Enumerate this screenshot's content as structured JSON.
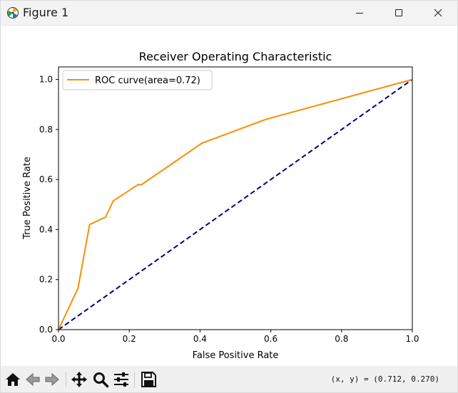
{
  "window": {
    "title": "Figure 1",
    "icons": {
      "app": "matplotlib-figure-icon",
      "minimize": "minimize-icon",
      "maximize": "maximize-icon",
      "close": "close-icon"
    }
  },
  "toolbar": {
    "buttons": [
      "home-icon",
      "back-arrow-icon",
      "forward-arrow-icon",
      "pan-icon",
      "zoom-icon",
      "configure-subplots-icon",
      "save-icon"
    ],
    "coords": "(x, y) = (0.712, 0.270)"
  },
  "chart_data": {
    "type": "line",
    "title": "Receiver Operating Characteristic",
    "xlabel": "False Positive Rate",
    "ylabel": "True Positive Rate",
    "xlim": [
      0.0,
      1.0
    ],
    "ylim": [
      0.0,
      1.05
    ],
    "xticks": [
      "0.0",
      "0.2",
      "0.4",
      "0.6",
      "0.8",
      "1.0"
    ],
    "yticks": [
      "0.0",
      "0.2",
      "0.4",
      "0.6",
      "0.8",
      "1.0"
    ],
    "grid": false,
    "legend_position": "upper-left",
    "series": [
      {
        "name": "ROC curve(area=0.72)",
        "color": "#ff8c00",
        "style": "solid",
        "x": [
          0.0,
          0.055,
          0.088,
          0.133,
          0.155,
          0.225,
          0.235,
          0.405,
          0.585,
          1.0
        ],
        "y": [
          0.0,
          0.165,
          0.42,
          0.45,
          0.515,
          0.58,
          0.58,
          0.745,
          0.84,
          1.0
        ]
      },
      {
        "name": "",
        "color": "#000080",
        "style": "dashed",
        "x": [
          0.0,
          1.0
        ],
        "y": [
          0.0,
          1.0
        ]
      }
    ]
  }
}
